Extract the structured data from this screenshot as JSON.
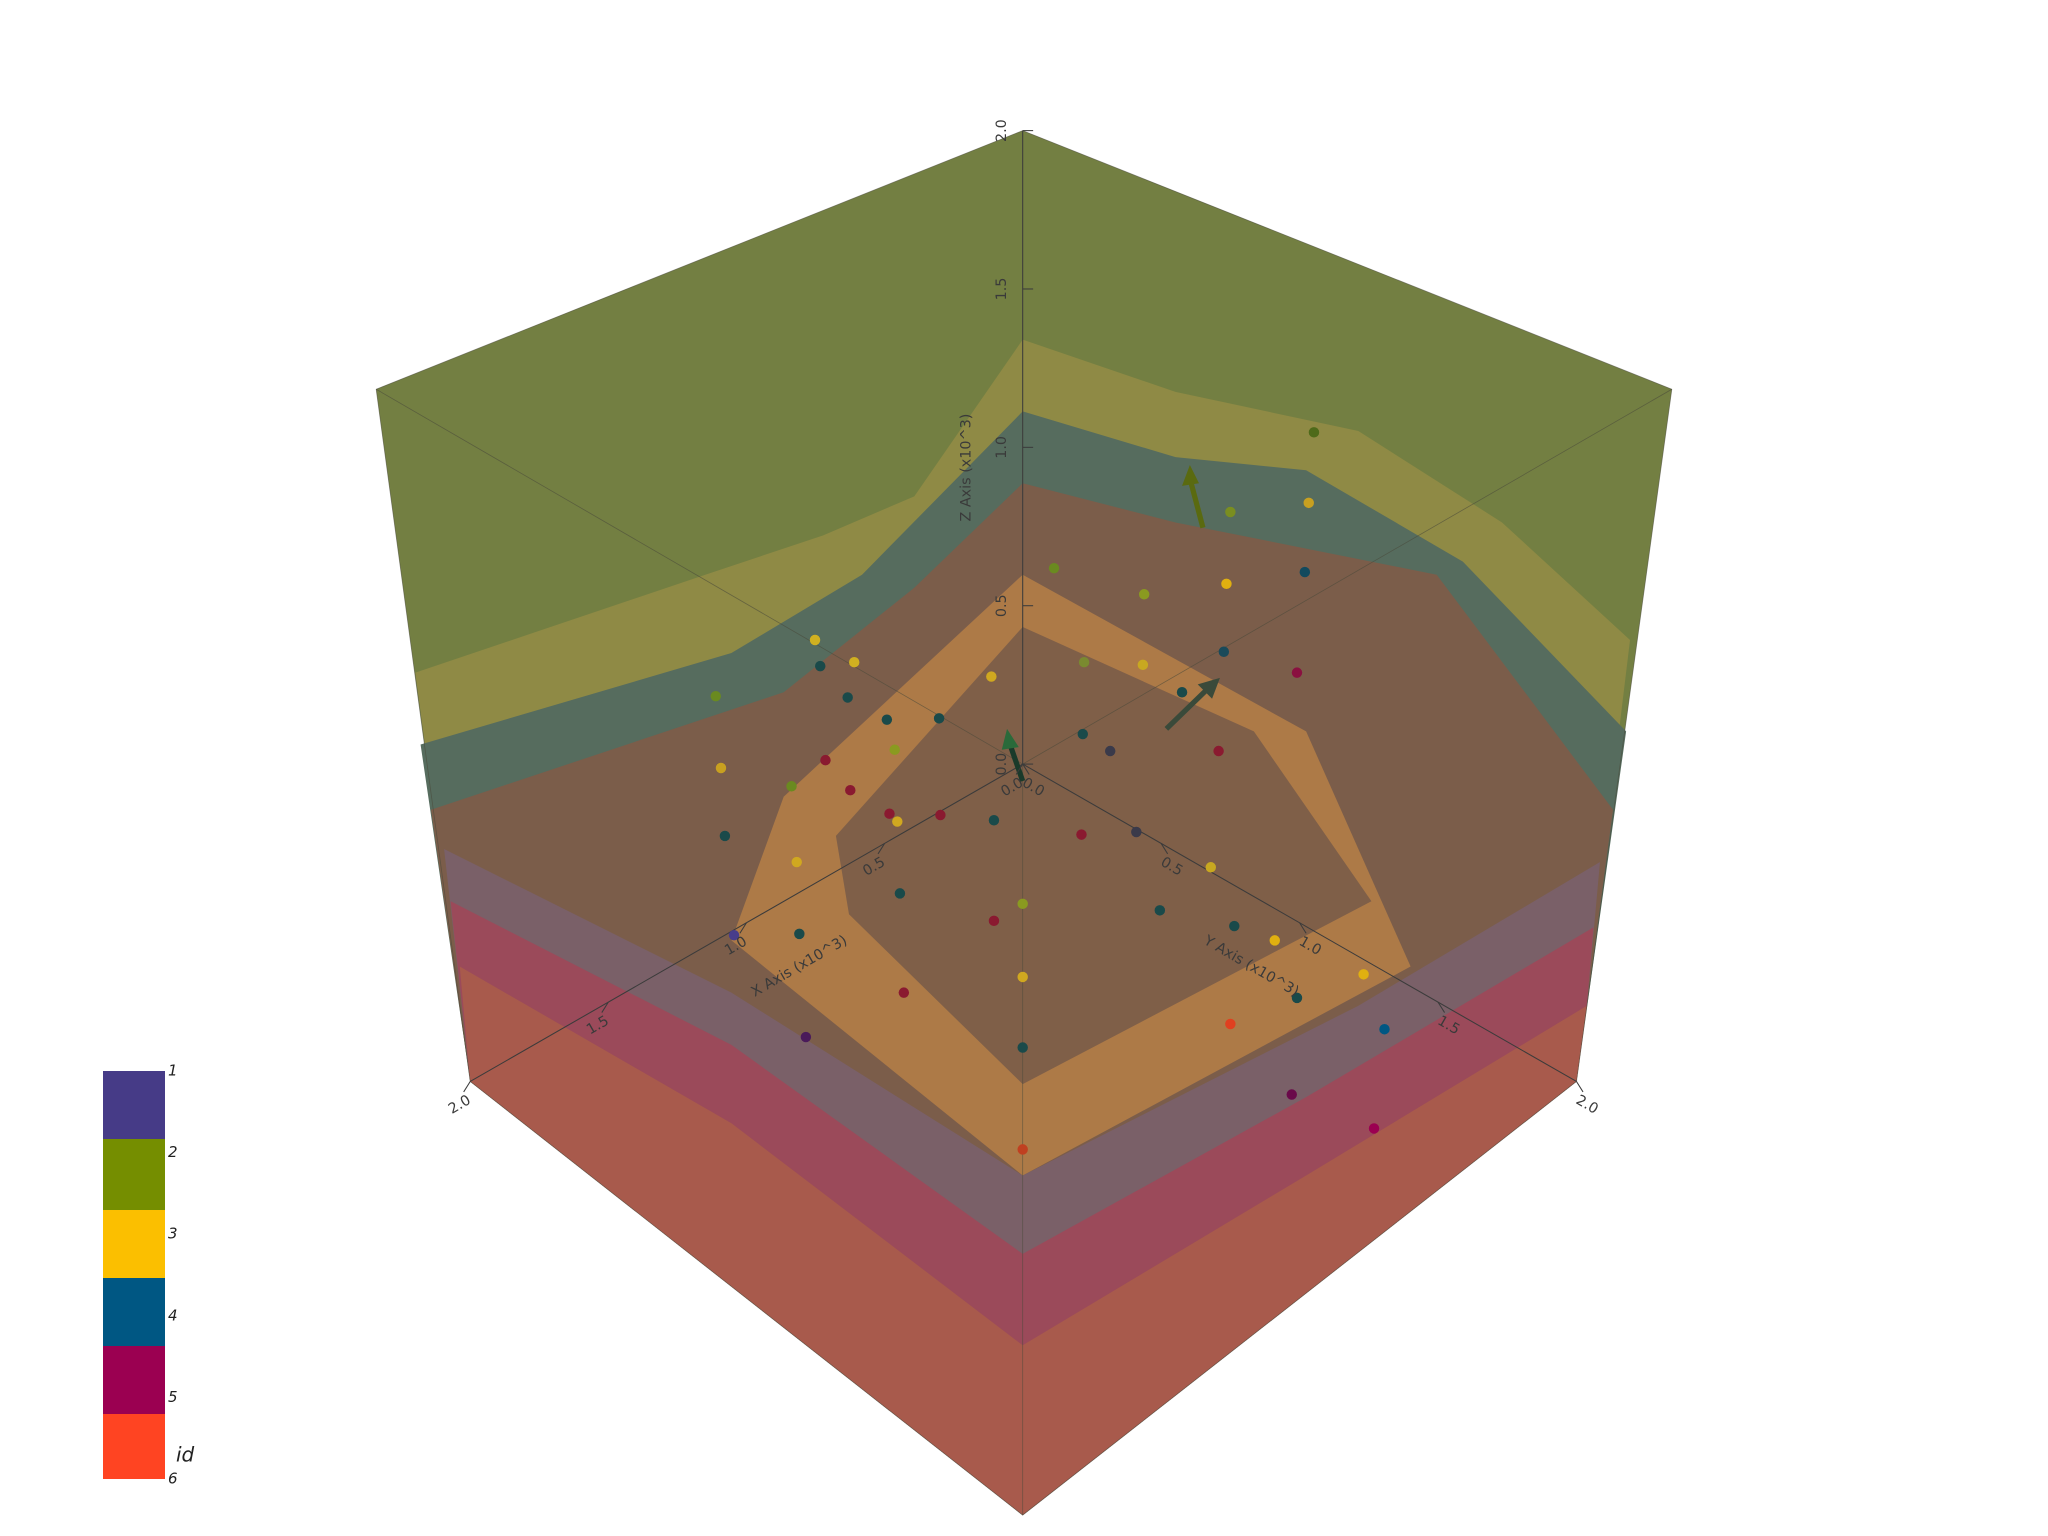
{
  "axes": {
    "x": {
      "title": "X Axis (x10^3)",
      "ticks": [
        "0.0",
        "0.5",
        "1.0",
        "1.5",
        "2.0"
      ]
    },
    "y": {
      "title": "Y Axis (x10^3)",
      "ticks": [
        "0.0",
        "0.5",
        "1.0",
        "1.5",
        "2.0"
      ]
    },
    "z": {
      "title": "Z Axis (x10^3)",
      "ticks": [
        "0.0",
        "0.5",
        "1.0",
        "1.5",
        "2.0"
      ]
    }
  },
  "colorbar": {
    "title": "id",
    "labels": [
      "1",
      "2",
      "3",
      "4",
      "5",
      "6"
    ]
  }
}
